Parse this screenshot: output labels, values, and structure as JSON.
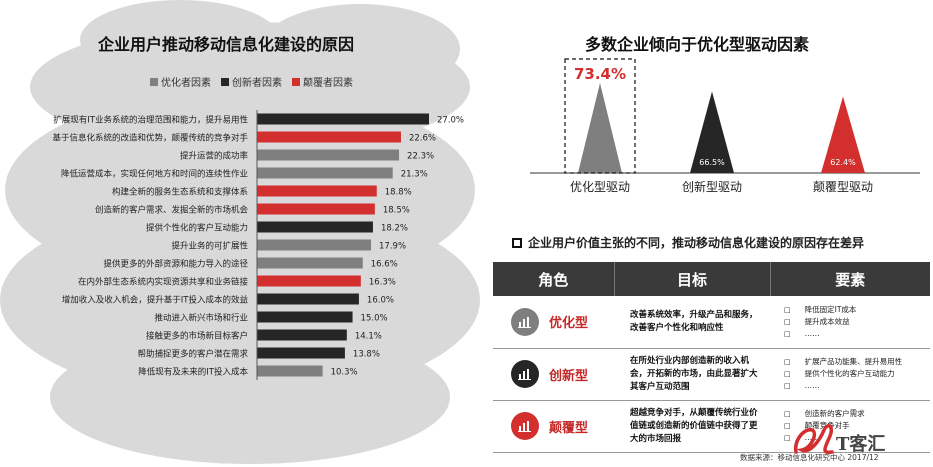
{
  "left": {
    "title": "企业用户推动移动信息化建设的原因",
    "legend": [
      {
        "label": "优化者因素",
        "color": "#7f7f7f"
      },
      {
        "label": "创新者因素",
        "color": "#262626"
      },
      {
        "label": "颠覆者因素",
        "color": "#d32f2f"
      }
    ]
  },
  "right": {
    "title": "多数企业倾向于优化型驱动因素",
    "section_title": "企业用户价值主张的不同，推动移动信息化建设的原因存在差异",
    "table": {
      "headers": [
        "角色",
        "目标",
        "要素"
      ],
      "rows": [
        {
          "role": "优化型",
          "icon_color": "#7f7f7f",
          "icon": "bar-chart-icon",
          "goal": "改善系统效率，升级产品和服务，改善客户个性化和响应性",
          "factors": [
            "降低固定IT成本",
            "提升成本效益",
            "……"
          ]
        },
        {
          "role": "创新型",
          "icon_color": "#262626",
          "icon": "bar-chart-icon",
          "goal": "在所处行业内部创造新的收入机会，开拓新的市场，由此显著扩大其客户互动范围",
          "factors": [
            "扩展产品功能集、提升易用性",
            "提供个性化的客户互动能力",
            "……"
          ]
        },
        {
          "role": "颠覆型",
          "icon_color": "#d32f2f",
          "icon": "bar-chart-icon",
          "goal": "超越竞争对手，从颠覆传统行业价值链或创造新的价值链中获得了更大的市场回报",
          "factors": [
            "创造新的客户需求",
            "颠覆竞争对手",
            "……"
          ]
        }
      ]
    }
  },
  "source": "数据来源：移动信息化研究中心 2017/12",
  "watermark": "T客汇",
  "chart_data": [
    {
      "type": "bar",
      "orientation": "horizontal",
      "title": "企业用户推动移动信息化建设的原因",
      "series_names": [
        "优化者因素",
        "创新者因素",
        "颠覆者因素"
      ],
      "categories": [
        "扩展现有IT业务系统的治理范围和能力，提升易用性",
        "基于信息化系统的改造和优势，颠覆传统的竞争对手",
        "提升运营的成功率",
        "降低运营成本，实现任何地方和时间的连续性作业",
        "构建全新的服务生态系统和支撑体系",
        "创造新的客户需求、发掘全新的市场机会",
        "提供个性化的客户互动能力",
        "提升业务的可扩展性",
        "提供更多的外部资源和能力导入的途径",
        "在内外部生态系统内实现资源共享和业务链接",
        "增加收入及收入机会，提升基于IT投入成本的效益",
        "推动进入新兴市场和行业",
        "接触更多的市场新目标客户",
        "帮助捕捉更多的客户潜在需求",
        "降低现有及未来的IT投入成本"
      ],
      "values": [
        27.0,
        22.6,
        22.3,
        21.3,
        18.8,
        18.5,
        18.2,
        17.9,
        16.6,
        16.3,
        16.0,
        15.0,
        14.1,
        13.8,
        10.3
      ],
      "labels": [
        "27.0%",
        "22.6%",
        "22.3%",
        "21.3%",
        "18.8%",
        "18.5%",
        "18.2%",
        "17.9%",
        "16.6%",
        "16.3%",
        "16.0%",
        "15.0%",
        "14.1%",
        "13.8%",
        "10.3%"
      ],
      "colors": [
        "#262626",
        "#d32f2f",
        "#7f7f7f",
        "#7f7f7f",
        "#d32f2f",
        "#d32f2f",
        "#262626",
        "#7f7f7f",
        "#7f7f7f",
        "#d32f2f",
        "#262626",
        "#262626",
        "#262626",
        "#262626",
        "#7f7f7f"
      ],
      "legend_position": "top"
    },
    {
      "type": "bar",
      "style": "triangle",
      "title": "多数企业倾向于优化型驱动因素",
      "categories": [
        "优化型驱动",
        "创新型驱动",
        "颠覆型驱动"
      ],
      "values": [
        73.4,
        66.5,
        62.4
      ],
      "labels": [
        "73.4%",
        "66.5%",
        "62.4%"
      ],
      "colors": [
        "#7f7f7f",
        "#262626",
        "#d32f2f"
      ],
      "highlight": "73.4%"
    }
  ]
}
